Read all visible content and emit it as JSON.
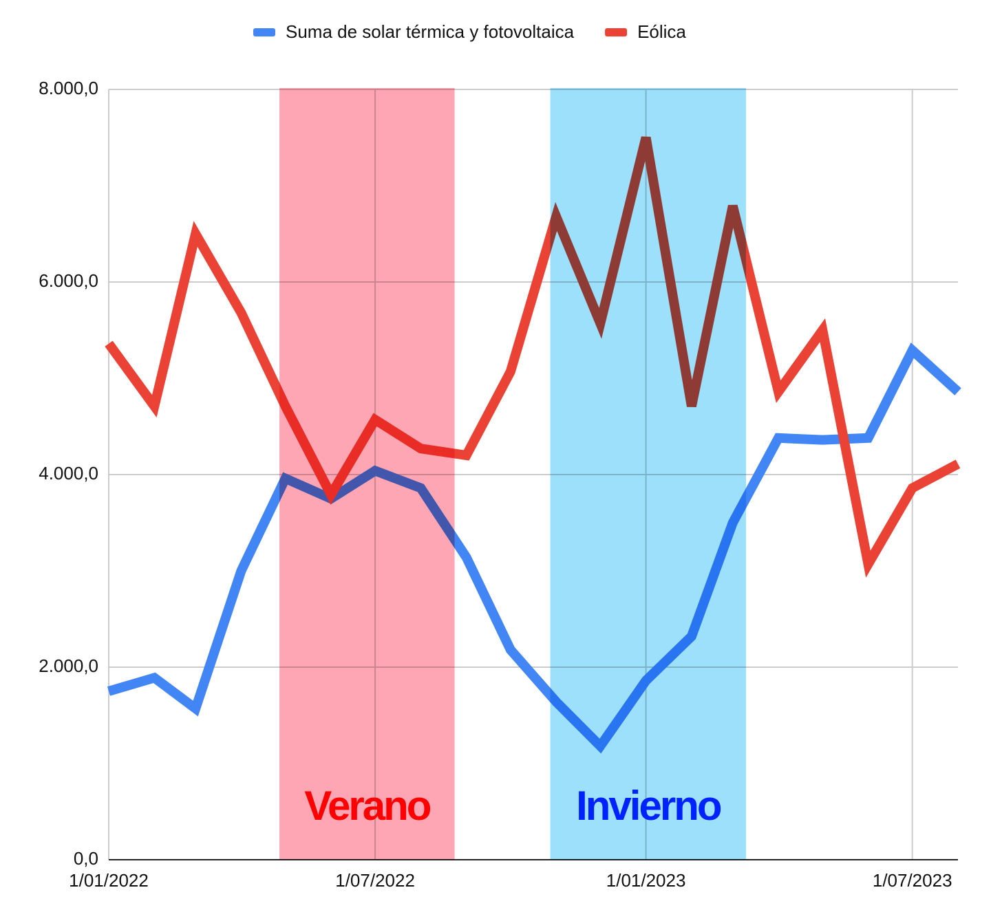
{
  "chart_data": {
    "type": "line",
    "x": [
      "2022-01-01",
      "2022-02-01",
      "2022-03-01",
      "2022-04-01",
      "2022-05-01",
      "2022-06-01",
      "2022-07-01",
      "2022-08-01",
      "2022-09-01",
      "2022-10-01",
      "2022-11-01",
      "2022-12-01",
      "2023-01-01",
      "2023-02-01",
      "2023-03-01",
      "2023-04-01",
      "2023-05-01",
      "2023-06-01",
      "2023-07-01",
      "2023-08-01"
    ],
    "series": [
      {
        "name": "Suma de solar térmica y fotovoltaica",
        "color": "#4285f4",
        "values": [
          1750,
          1890,
          1570,
          3000,
          3960,
          3750,
          4040,
          3860,
          3140,
          2180,
          1640,
          1180,
          1860,
          2320,
          3500,
          4380,
          4360,
          4380,
          5290,
          4860
        ]
      },
      {
        "name": "Eólica",
        "color": "#ea4335",
        "values": [
          5360,
          4710,
          6500,
          5680,
          4710,
          3790,
          4570,
          4270,
          4200,
          5070,
          6680,
          5570,
          7500,
          4710,
          6790,
          4860,
          5500,
          3070,
          3860,
          4110
        ]
      }
    ],
    "xlim": [
      "2022-01-01",
      "2023-08-01"
    ],
    "xticks": [
      {
        "value": "2022-01-01",
        "label": "1/01/2022"
      },
      {
        "value": "2022-07-01",
        "label": "1/07/2022"
      },
      {
        "value": "2023-01-01",
        "label": "1/01/2023"
      },
      {
        "value": "2023-07-01",
        "label": "1/07/2023"
      }
    ],
    "ylim": [
      0,
      8000
    ],
    "yticks": [
      {
        "value": 0,
        "label": "0,0"
      },
      {
        "value": 2000,
        "label": "2.000,0"
      },
      {
        "value": 4000,
        "label": "4.000,0"
      },
      {
        "value": 6000,
        "label": "6.000,0"
      },
      {
        "value": 8000,
        "label": "8.000,0"
      }
    ],
    "grid": true,
    "legend": "top",
    "bands": [
      {
        "label": "Verano",
        "range": [
          "2022-04-27",
          "2022-08-24"
        ],
        "color": "#ffa6b4",
        "label_color": "#ff0000"
      },
      {
        "label": "Invierno",
        "range": [
          "2022-10-28",
          "2023-03-10"
        ],
        "color": "#9ce0fc",
        "label_color": "#0022ff"
      }
    ]
  }
}
